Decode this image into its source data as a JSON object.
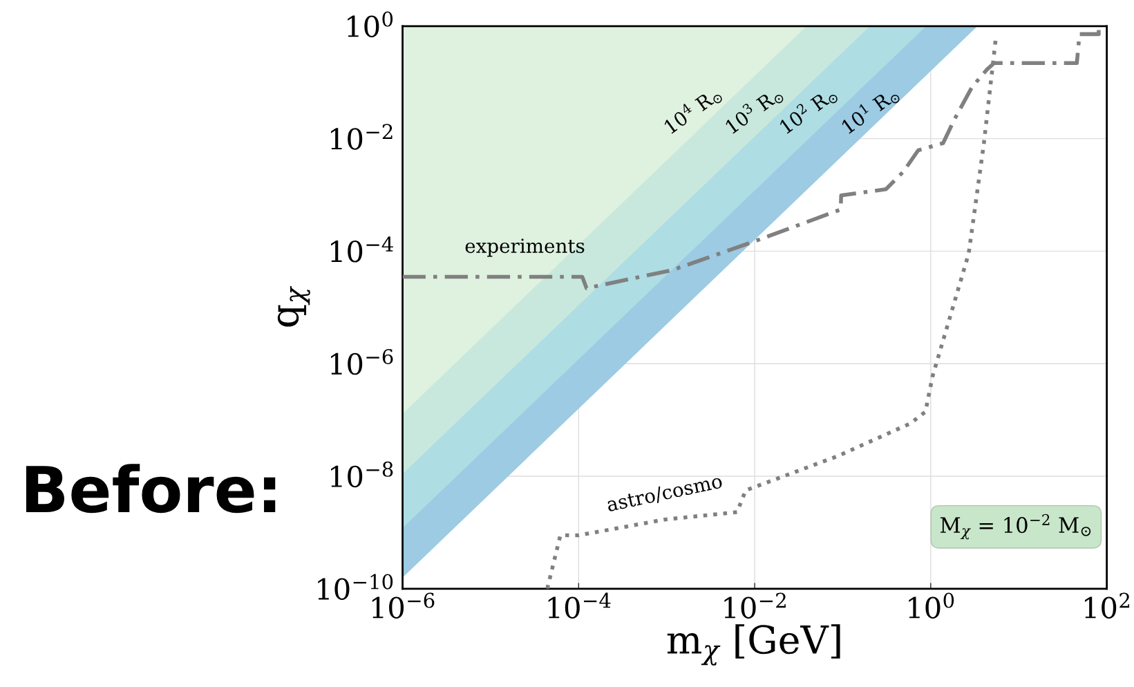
{
  "chart_data": {
    "type": "line",
    "xlabel": "m$_{χ}$ [GeV]",
    "ylabel": "q$_{χ}$",
    "log": "xy",
    "grid": true,
    "xlim": [
      1e-06,
      100
    ],
    "ylim": [
      1e-10,
      1
    ],
    "xticks": [
      {
        "value": 1e-06,
        "label": "10$^{−6}$"
      },
      {
        "value": 0.0001,
        "label": "10$^{−4}$"
      },
      {
        "value": 0.01,
        "label": "10$^{−2}$"
      },
      {
        "value": 1,
        "label": "10$^{0}$"
      },
      {
        "value": 100,
        "label": "10$^{2}$"
      }
    ],
    "yticks": [
      {
        "value": 1e-10,
        "label": "10$^{−10}$"
      },
      {
        "value": 1e-08,
        "label": "10$^{−8}$"
      },
      {
        "value": 1e-06,
        "label": "10$^{−6}$"
      },
      {
        "value": 0.0001,
        "label": "10$^{−4}$"
      },
      {
        "value": 0.01,
        "label": "10$^{−2}$"
      },
      {
        "value": 1,
        "label": "10$^{0}$"
      }
    ],
    "series": [
      {
        "type": "area",
        "color": "#9ccbe3",
        "x": [
          1e-06,
          3.4
        ],
        "values": [
          1.58e-10,
          1
        ]
      },
      {
        "type": "area",
        "color": "#aedde3",
        "x": [
          1e-06,
          0.89
        ],
        "values": [
          1.2e-09,
          1
        ]
      },
      {
        "type": "area",
        "color": "#c8e8de",
        "x": [
          1e-06,
          0.204
        ],
        "values": [
          1.1e-08,
          1
        ]
      },
      {
        "type": "area",
        "color": "#dff1df",
        "x": [
          1e-06,
          0.0389
        ],
        "values": [
          1.29e-07,
          1
        ]
      },
      {
        "color": "#808080",
        "line_style": "dashdot",
        "x": [
          1e-06,
          0.00011,
          0.000123,
          0.00115,
          0.01,
          0.095,
          0.096,
          0.31,
          0.49,
          0.72,
          1.38,
          1.86,
          2.95,
          4.37,
          5.25,
          45.7,
          49,
          81,
          81
        ],
        "values": [
          3.5e-05,
          3.5e-05,
          2.2e-05,
          4.6e-05,
          0.00015,
          0.00055,
          0.00098,
          0.00126,
          0.0026,
          0.0062,
          0.0083,
          0.022,
          0.083,
          0.17,
          0.22,
          0.22,
          0.72,
          0.72,
          1
        ]
      },
      {
        "color": "#808080",
        "line_style": "dotted",
        "x": [
          4.4e-05,
          6.2e-05,
          0.0001,
          0.00095,
          0.0063,
          0.0079,
          0.089,
          0.59,
          0.87,
          1.05,
          2.7,
          4,
          5.5
        ],
        "values": [
          1e-10,
          8.9e-10,
          8.9e-10,
          1.7e-09,
          2.3e-09,
          5.6e-09,
          2.3e-08,
          8.7e-08,
          1.4e-07,
          6e-07,
          9.1e-05,
          0.0078,
          0.63
        ]
      }
    ],
    "annotations": [
      "10$^{4}$ R$_{⊙}$",
      "10$^{3}$ R$_{⊙}$",
      "10$^{2}$ R$_{⊙}$",
      "10$^{1}$ R$_{⊙}$",
      "experiments",
      "astro/cosmo",
      "M$_{χ}$ = 10$^{−2}$ M$_{⊙}$",
      "Before:"
    ]
  }
}
